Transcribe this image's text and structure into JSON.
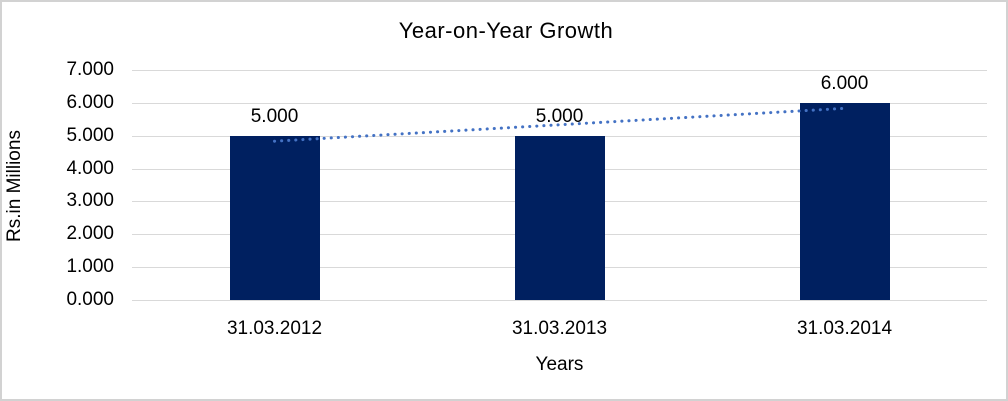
{
  "chart_data": {
    "type": "bar",
    "title": "Year-on-Year Growth",
    "xlabel": "Years",
    "ylabel": "Rs.in Millions",
    "categories": [
      "31.03.2012",
      "31.03.2013",
      "31.03.2014"
    ],
    "series": [
      {
        "name": "Rs.in Millions",
        "values": [
          5.0,
          5.0,
          6.0
        ],
        "data_labels": [
          "5.000",
          "5.000",
          "6.000"
        ]
      }
    ],
    "ylim": [
      0,
      7
    ],
    "ytick_labels": [
      "0.000",
      "1.000",
      "2.000",
      "3.000",
      "4.000",
      "5.000",
      "6.000",
      "7.000"
    ],
    "grid": true,
    "legend": "none",
    "bar_color": "#002060",
    "gridline_color": "#d9d9d9",
    "text_color": "#000000",
    "trendline": {
      "type": "linear",
      "style": "dotted",
      "color": "#4472c4",
      "values_at_categories": [
        4.833,
        5.333,
        5.833
      ]
    }
  }
}
